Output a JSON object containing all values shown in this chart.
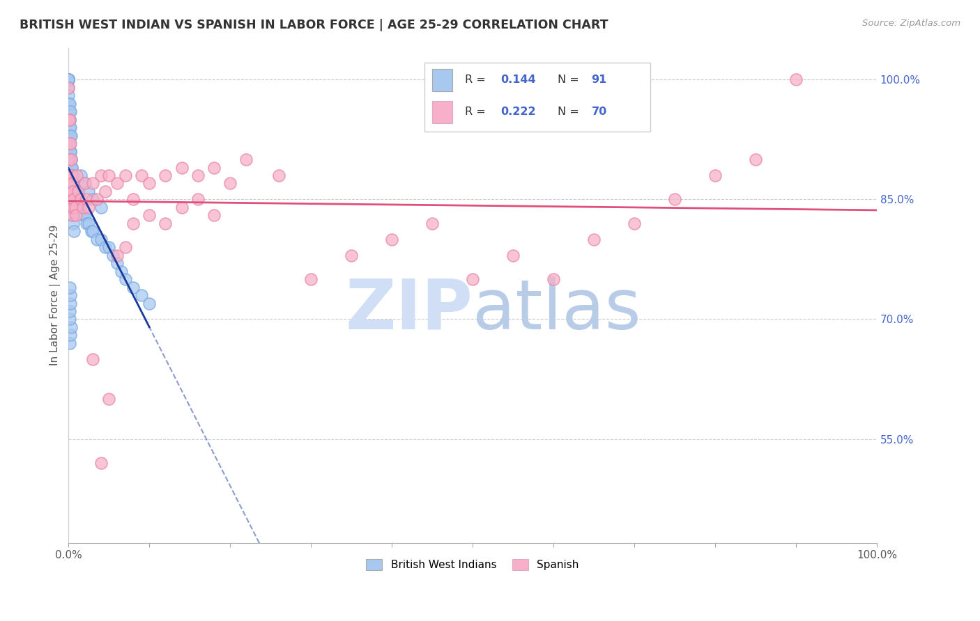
{
  "title": "BRITISH WEST INDIAN VS SPANISH IN LABOR FORCE | AGE 25-29 CORRELATION CHART",
  "source": "Source: ZipAtlas.com",
  "ylabel": "In Labor Force | Age 25-29",
  "y_ticks_right": [
    0.55,
    0.7,
    0.85,
    1.0
  ],
  "y_tick_labels_right": [
    "55.0%",
    "70.0%",
    "85.0%",
    "100.0%"
  ],
  "ylim": [
    0.42,
    1.04
  ],
  "xlim": [
    0.0,
    1.0
  ],
  "legend_r_bwi": "0.144",
  "legend_n_bwi": "91",
  "legend_r_sp": "0.222",
  "legend_n_sp": "70",
  "bwi_color": "#a8c8f0",
  "bwi_edge_color": "#7aaae0",
  "bwi_line_color": "#1a3a9c",
  "spanish_color": "#f8b0c8",
  "spanish_edge_color": "#e888a8",
  "spanish_line_color": "#e0507a",
  "grid_color": "#cccccc",
  "watermark_color": "#d0dff5",
  "bwi_x": [
    0.0,
    0.0,
    0.0,
    0.0,
    0.0,
    0.0,
    0.0,
    0.0,
    0.0,
    0.0,
    0.001,
    0.001,
    0.001,
    0.001,
    0.001,
    0.001,
    0.001,
    0.002,
    0.002,
    0.002,
    0.002,
    0.002,
    0.003,
    0.003,
    0.003,
    0.003,
    0.004,
    0.004,
    0.004,
    0.005,
    0.005,
    0.005,
    0.006,
    0.006,
    0.007,
    0.007,
    0.008,
    0.009,
    0.01,
    0.01,
    0.012,
    0.014,
    0.015,
    0.018,
    0.02,
    0.022,
    0.025,
    0.028,
    0.03,
    0.035,
    0.04,
    0.045,
    0.05,
    0.055,
    0.06,
    0.065,
    0.07,
    0.08,
    0.09,
    0.1,
    0.015,
    0.02,
    0.025,
    0.03,
    0.04,
    0.002,
    0.003,
    0.004,
    0.005,
    0.006,
    0.007,
    0.001,
    0.002,
    0.003,
    0.004,
    0.005,
    0.001,
    0.002,
    0.001,
    0.002,
    0.003,
    0.001,
    0.002,
    0.001,
    0.002,
    0.003,
    0.001,
    0.001,
    0.002,
    0.002,
    0.001
  ],
  "bwi_y": [
    1.0,
    1.0,
    1.0,
    1.0,
    1.0,
    1.0,
    1.0,
    0.99,
    0.98,
    0.97,
    0.96,
    0.95,
    0.94,
    0.93,
    0.92,
    0.91,
    0.9,
    0.93,
    0.91,
    0.9,
    0.89,
    0.88,
    0.9,
    0.89,
    0.88,
    0.87,
    0.89,
    0.88,
    0.87,
    0.88,
    0.87,
    0.86,
    0.87,
    0.86,
    0.87,
    0.85,
    0.86,
    0.85,
    0.86,
    0.85,
    0.85,
    0.84,
    0.84,
    0.83,
    0.83,
    0.82,
    0.82,
    0.81,
    0.81,
    0.8,
    0.8,
    0.79,
    0.79,
    0.78,
    0.77,
    0.76,
    0.75,
    0.74,
    0.73,
    0.72,
    0.88,
    0.87,
    0.86,
    0.85,
    0.84,
    0.86,
    0.85,
    0.84,
    0.83,
    0.82,
    0.81,
    0.92,
    0.91,
    0.9,
    0.89,
    0.88,
    0.97,
    0.96,
    0.95,
    0.94,
    0.93,
    0.92,
    0.91,
    0.67,
    0.68,
    0.69,
    0.7,
    0.71,
    0.72,
    0.73,
    0.74
  ],
  "spanish_x": [
    0.0,
    0.0,
    0.0,
    0.001,
    0.001,
    0.001,
    0.002,
    0.002,
    0.002,
    0.003,
    0.003,
    0.003,
    0.004,
    0.004,
    0.005,
    0.005,
    0.005,
    0.006,
    0.006,
    0.007,
    0.008,
    0.009,
    0.01,
    0.012,
    0.015,
    0.018,
    0.02,
    0.022,
    0.025,
    0.03,
    0.035,
    0.04,
    0.045,
    0.05,
    0.06,
    0.07,
    0.08,
    0.09,
    0.1,
    0.12,
    0.14,
    0.16,
    0.18,
    0.2,
    0.22,
    0.26,
    0.3,
    0.35,
    0.4,
    0.45,
    0.5,
    0.55,
    0.6,
    0.65,
    0.7,
    0.75,
    0.8,
    0.85,
    0.9,
    0.03,
    0.04,
    0.05,
    0.06,
    0.07,
    0.08,
    0.1,
    0.12,
    0.14,
    0.16,
    0.18
  ],
  "spanish_y": [
    0.99,
    0.95,
    0.9,
    0.95,
    0.92,
    0.88,
    0.92,
    0.88,
    0.85,
    0.9,
    0.87,
    0.84,
    0.88,
    0.86,
    0.87,
    0.85,
    0.83,
    0.86,
    0.84,
    0.85,
    0.84,
    0.83,
    0.88,
    0.86,
    0.85,
    0.84,
    0.87,
    0.85,
    0.84,
    0.87,
    0.85,
    0.88,
    0.86,
    0.88,
    0.87,
    0.88,
    0.85,
    0.88,
    0.87,
    0.88,
    0.89,
    0.88,
    0.89,
    0.87,
    0.9,
    0.88,
    0.75,
    0.78,
    0.8,
    0.82,
    0.75,
    0.78,
    0.75,
    0.8,
    0.82,
    0.85,
    0.88,
    0.9,
    1.0,
    0.65,
    0.52,
    0.6,
    0.78,
    0.79,
    0.82,
    0.83,
    0.82,
    0.84,
    0.85,
    0.83
  ]
}
